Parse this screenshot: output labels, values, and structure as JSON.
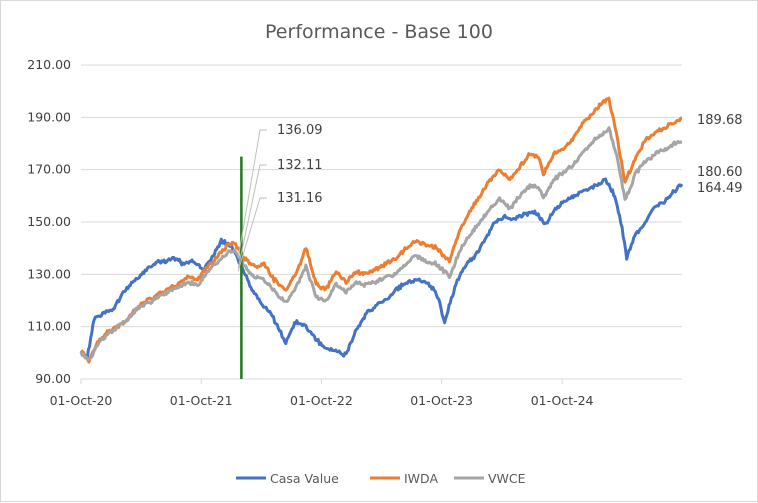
{
  "chart_data": {
    "type": "line",
    "title": "Performance - Base 100",
    "xlabel": "",
    "ylabel": "",
    "ylim": [
      90,
      210
    ],
    "yticks": [
      "90.00",
      "110.00",
      "130.00",
      "150.00",
      "170.00",
      "190.00",
      "210.00"
    ],
    "xlim": [
      "2020-10-01",
      "2025-09-30"
    ],
    "xticks": [
      {
        "date": "2020-10-01",
        "label": "01-Oct-20"
      },
      {
        "date": "2021-10-01",
        "label": "01-Oct-21"
      },
      {
        "date": "2022-10-01",
        "label": "01-Oct-22"
      },
      {
        "date": "2023-10-01",
        "label": "01-Oct-23"
      },
      {
        "date": "2024-10-01",
        "label": "01-Oct-24"
      }
    ],
    "grid": true,
    "legend": "bottom",
    "series": [
      {
        "name": "Casa Value",
        "color": "#4472C4",
        "points": [
          [
            "2020-10-01",
            100
          ],
          [
            "2020-10-20",
            98
          ],
          [
            "2020-11-10",
            113
          ],
          [
            "2020-12-10",
            115
          ],
          [
            "2021-01-10",
            117
          ],
          [
            "2021-02-10",
            124
          ],
          [
            "2021-03-10",
            127
          ],
          [
            "2021-04-10",
            131
          ],
          [
            "2021-05-10",
            134
          ],
          [
            "2021-06-10",
            135
          ],
          [
            "2021-07-10",
            136
          ],
          [
            "2021-08-10",
            134
          ],
          [
            "2021-09-10",
            135
          ],
          [
            "2021-10-10",
            132
          ],
          [
            "2021-11-10",
            138
          ],
          [
            "2021-12-01",
            143
          ],
          [
            "2022-01-05",
            140
          ],
          [
            "2022-02-01",
            133
          ],
          [
            "2022-03-01",
            125
          ],
          [
            "2022-04-01",
            119
          ],
          [
            "2022-05-01",
            115
          ],
          [
            "2022-06-15",
            104
          ],
          [
            "2022-07-15",
            112
          ],
          [
            "2022-08-15",
            110
          ],
          [
            "2022-09-10",
            106
          ],
          [
            "2022-10-10",
            102
          ],
          [
            "2022-11-10",
            101
          ],
          [
            "2022-12-15",
            99
          ],
          [
            "2023-01-15",
            109
          ],
          [
            "2023-02-15",
            115
          ],
          [
            "2023-03-15",
            118
          ],
          [
            "2023-04-15",
            120
          ],
          [
            "2023-05-15",
            124
          ],
          [
            "2023-06-15",
            127
          ],
          [
            "2023-07-15",
            128
          ],
          [
            "2023-08-15",
            127
          ],
          [
            "2023-09-15",
            123
          ],
          [
            "2023-10-10",
            112
          ],
          [
            "2023-11-10",
            125
          ],
          [
            "2023-12-10",
            133
          ],
          [
            "2024-01-10",
            137
          ],
          [
            "2024-02-10",
            143
          ],
          [
            "2024-03-10",
            150
          ],
          [
            "2024-04-10",
            152
          ],
          [
            "2024-05-10",
            151
          ],
          [
            "2024-06-10",
            153
          ],
          [
            "2024-07-10",
            154
          ],
          [
            "2024-08-10",
            149
          ],
          [
            "2024-09-10",
            155
          ],
          [
            "2024-10-10",
            158
          ],
          [
            "2024-11-10",
            160
          ],
          [
            "2024-12-10",
            162
          ],
          [
            "2025-01-10",
            164
          ],
          [
            "2025-02-10",
            166
          ],
          [
            "2025-03-10",
            160
          ],
          [
            "2025-04-01",
            148
          ],
          [
            "2025-04-15",
            136
          ],
          [
            "2025-05-10",
            145
          ],
          [
            "2025-06-10",
            150
          ],
          [
            "2025-07-10",
            156
          ],
          [
            "2025-08-10",
            158
          ],
          [
            "2025-09-10",
            162
          ],
          [
            "2025-09-30",
            164.49
          ]
        ]
      },
      {
        "name": "IWDA",
        "color": "#ED7D31",
        "points": [
          [
            "2020-10-01",
            101
          ],
          [
            "2020-10-25",
            97
          ],
          [
            "2020-11-20",
            104
          ],
          [
            "2020-12-20",
            108
          ],
          [
            "2021-01-20",
            110
          ],
          [
            "2021-02-20",
            113
          ],
          [
            "2021-03-20",
            117
          ],
          [
            "2021-04-20",
            120
          ],
          [
            "2021-05-20",
            122
          ],
          [
            "2021-06-20",
            124
          ],
          [
            "2021-07-20",
            126
          ],
          [
            "2021-08-20",
            129
          ],
          [
            "2021-09-20",
            128
          ],
          [
            "2021-10-20",
            133
          ],
          [
            "2021-11-20",
            137
          ],
          [
            "2021-12-20",
            141
          ],
          [
            "2022-01-10",
            142
          ],
          [
            "2022-02-10",
            136
          ],
          [
            "2022-03-10",
            133
          ],
          [
            "2022-04-10",
            134
          ],
          [
            "2022-05-10",
            128
          ],
          [
            "2022-06-15",
            124
          ],
          [
            "2022-07-15",
            130
          ],
          [
            "2022-08-15",
            140
          ],
          [
            "2022-09-15",
            126
          ],
          [
            "2022-10-15",
            124
          ],
          [
            "2022-11-15",
            131
          ],
          [
            "2022-12-15",
            127
          ],
          [
            "2023-01-15",
            131
          ],
          [
            "2023-02-15",
            130
          ],
          [
            "2023-03-15",
            132
          ],
          [
            "2023-04-15",
            134
          ],
          [
            "2023-05-15",
            136
          ],
          [
            "2023-06-15",
            140
          ],
          [
            "2023-07-15",
            143
          ],
          [
            "2023-08-15",
            141
          ],
          [
            "2023-09-15",
            140
          ],
          [
            "2023-10-25",
            135
          ],
          [
            "2023-11-25",
            147
          ],
          [
            "2023-12-25",
            154
          ],
          [
            "2024-01-25",
            160
          ],
          [
            "2024-02-25",
            166
          ],
          [
            "2024-03-25",
            170
          ],
          [
            "2024-04-25",
            166
          ],
          [
            "2024-05-25",
            171
          ],
          [
            "2024-06-25",
            176
          ],
          [
            "2024-07-25",
            174
          ],
          [
            "2024-08-05",
            168
          ],
          [
            "2024-09-05",
            176
          ],
          [
            "2024-10-05",
            178
          ],
          [
            "2024-11-05",
            182
          ],
          [
            "2024-12-05",
            188
          ],
          [
            "2025-01-05",
            192
          ],
          [
            "2025-02-05",
            196
          ],
          [
            "2025-02-20",
            197
          ],
          [
            "2025-03-15",
            184
          ],
          [
            "2025-04-10",
            165
          ],
          [
            "2025-05-10",
            174
          ],
          [
            "2025-06-10",
            181
          ],
          [
            "2025-07-10",
            184
          ],
          [
            "2025-08-10",
            186
          ],
          [
            "2025-09-10",
            188
          ],
          [
            "2025-09-30",
            189.68
          ]
        ]
      },
      {
        "name": "VWCE",
        "color": "#A5A5A5",
        "points": [
          [
            "2020-10-01",
            100
          ],
          [
            "2020-10-25",
            97
          ],
          [
            "2020-11-20",
            103
          ],
          [
            "2020-12-20",
            107
          ],
          [
            "2021-01-20",
            110
          ],
          [
            "2021-02-20",
            113
          ],
          [
            "2021-03-20",
            117
          ],
          [
            "2021-04-20",
            119
          ],
          [
            "2021-05-20",
            121
          ],
          [
            "2021-06-20",
            123
          ],
          [
            "2021-07-20",
            125
          ],
          [
            "2021-08-20",
            127
          ],
          [
            "2021-09-20",
            126
          ],
          [
            "2021-10-20",
            131
          ],
          [
            "2021-11-20",
            135
          ],
          [
            "2021-12-20",
            138
          ],
          [
            "2022-01-10",
            139
          ],
          [
            "2022-02-10",
            133
          ],
          [
            "2022-03-10",
            129
          ],
          [
            "2022-04-10",
            128
          ],
          [
            "2022-05-10",
            124
          ],
          [
            "2022-06-15",
            119
          ],
          [
            "2022-07-15",
            125
          ],
          [
            "2022-08-15",
            133
          ],
          [
            "2022-09-15",
            121
          ],
          [
            "2022-10-15",
            120
          ],
          [
            "2022-11-15",
            126
          ],
          [
            "2022-12-15",
            123
          ],
          [
            "2023-01-15",
            127
          ],
          [
            "2023-02-15",
            126
          ],
          [
            "2023-03-15",
            127
          ],
          [
            "2023-04-15",
            129
          ],
          [
            "2023-05-15",
            130
          ],
          [
            "2023-06-15",
            134
          ],
          [
            "2023-07-15",
            137
          ],
          [
            "2023-08-15",
            135
          ],
          [
            "2023-09-15",
            134
          ],
          [
            "2023-10-25",
            129
          ],
          [
            "2023-11-25",
            139
          ],
          [
            "2023-12-25",
            145
          ],
          [
            "2024-01-25",
            150
          ],
          [
            "2024-02-25",
            155
          ],
          [
            "2024-03-25",
            159
          ],
          [
            "2024-04-25",
            155
          ],
          [
            "2024-05-25",
            160
          ],
          [
            "2024-06-25",
            164
          ],
          [
            "2024-07-25",
            163
          ],
          [
            "2024-08-05",
            159
          ],
          [
            "2024-09-05",
            166
          ],
          [
            "2024-10-05",
            169
          ],
          [
            "2024-11-05",
            172
          ],
          [
            "2024-12-05",
            177
          ],
          [
            "2025-01-05",
            181
          ],
          [
            "2025-02-05",
            184
          ],
          [
            "2025-02-20",
            186
          ],
          [
            "2025-03-15",
            176
          ],
          [
            "2025-04-10",
            158
          ],
          [
            "2025-05-10",
            168
          ],
          [
            "2025-06-10",
            173
          ],
          [
            "2025-07-10",
            176
          ],
          [
            "2025-08-10",
            178
          ],
          [
            "2025-09-10",
            180
          ],
          [
            "2025-09-30",
            180.6
          ]
        ]
      }
    ],
    "end_labels": [
      {
        "series": "IWDA",
        "text": "189.68"
      },
      {
        "series": "VWCE",
        "text": "180.60"
      },
      {
        "series": "Casa Value",
        "text": "164.49"
      }
    ],
    "marker": {
      "date": "2022-01-31",
      "y_from": 90,
      "y_to": 175,
      "color": "#1E7B1E"
    },
    "annotations": [
      {
        "text": "136.09",
        "date": "2022-01-15",
        "value": 136.09
      },
      {
        "text": "132.11",
        "date": "2022-01-15",
        "value": 132.11
      },
      {
        "text": "131.16",
        "date": "2022-01-15",
        "value": 131.16
      }
    ]
  }
}
